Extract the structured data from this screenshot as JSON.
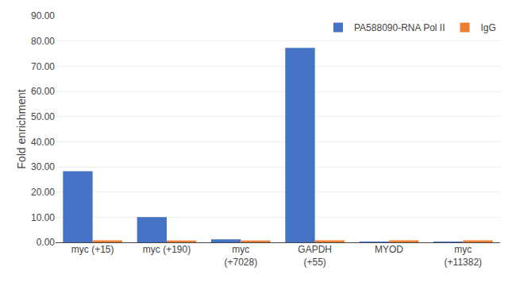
{
  "chart_data": {
    "type": "bar",
    "categories": [
      "myc (+15)",
      "myc (+190)",
      "myc\n(+7028)",
      "GAPDH\n(+55)",
      "MYOD",
      "myc\n(+11382)"
    ],
    "series": [
      {
        "name": "PA588090-RNA Pol II",
        "color": "#4472C4",
        "values": [
          28.3,
          10.0,
          1.2,
          77.3,
          0.3,
          0.3
        ]
      },
      {
        "name": "IgG",
        "color": "#ED7D31",
        "values": [
          0.8,
          0.7,
          0.7,
          0.8,
          0.8,
          0.8
        ]
      }
    ],
    "ylabel": "Fold enrichment",
    "ylim": [
      0,
      90
    ],
    "yticks": [
      {
        "value": 0,
        "label": "0.00"
      },
      {
        "value": 10,
        "label": "10.00"
      },
      {
        "value": 20,
        "label": "20.00"
      },
      {
        "value": 30,
        "label": "30.00"
      },
      {
        "value": 40,
        "label": "40.00"
      },
      {
        "value": 50,
        "label": "50.00"
      },
      {
        "value": 60,
        "label": "60.00"
      },
      {
        "value": 70,
        "label": "70.00"
      },
      {
        "value": 80,
        "label": "80.00"
      },
      {
        "value": 90,
        "label": "90.00"
      }
    ],
    "grid": true,
    "legend": "upper right"
  }
}
